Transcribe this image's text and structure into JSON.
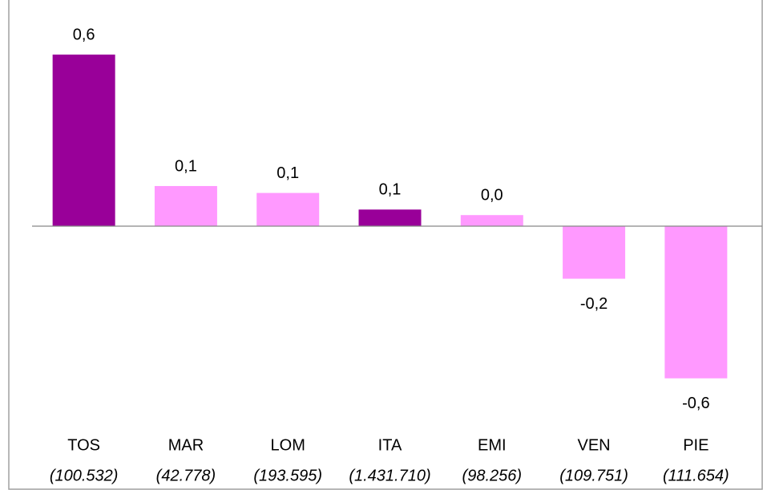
{
  "chart_data": {
    "type": "bar",
    "categories": [
      "TOS",
      "MAR",
      "LOM",
      "ITA",
      "EMI",
      "VEN",
      "PIE"
    ],
    "sublabels": [
      "(100.532)",
      "(42.778)",
      "(193.595)",
      "(1.431.710)",
      "(98.256)",
      "(109.751)",
      "(111.654)"
    ],
    "values": [
      0.62,
      0.145,
      0.12,
      0.06,
      0.04,
      -0.19,
      -0.55
    ],
    "value_labels": [
      "0,6",
      "0,1",
      "0,1",
      "0,1",
      "0,0",
      "-0,2",
      "-0,6"
    ],
    "colors": [
      "#990099",
      "#ff99ff",
      "#ff99ff",
      "#990099",
      "#ff99ff",
      "#ff99ff",
      "#ff99ff"
    ],
    "ylim": [
      -0.8,
      0.8
    ]
  }
}
